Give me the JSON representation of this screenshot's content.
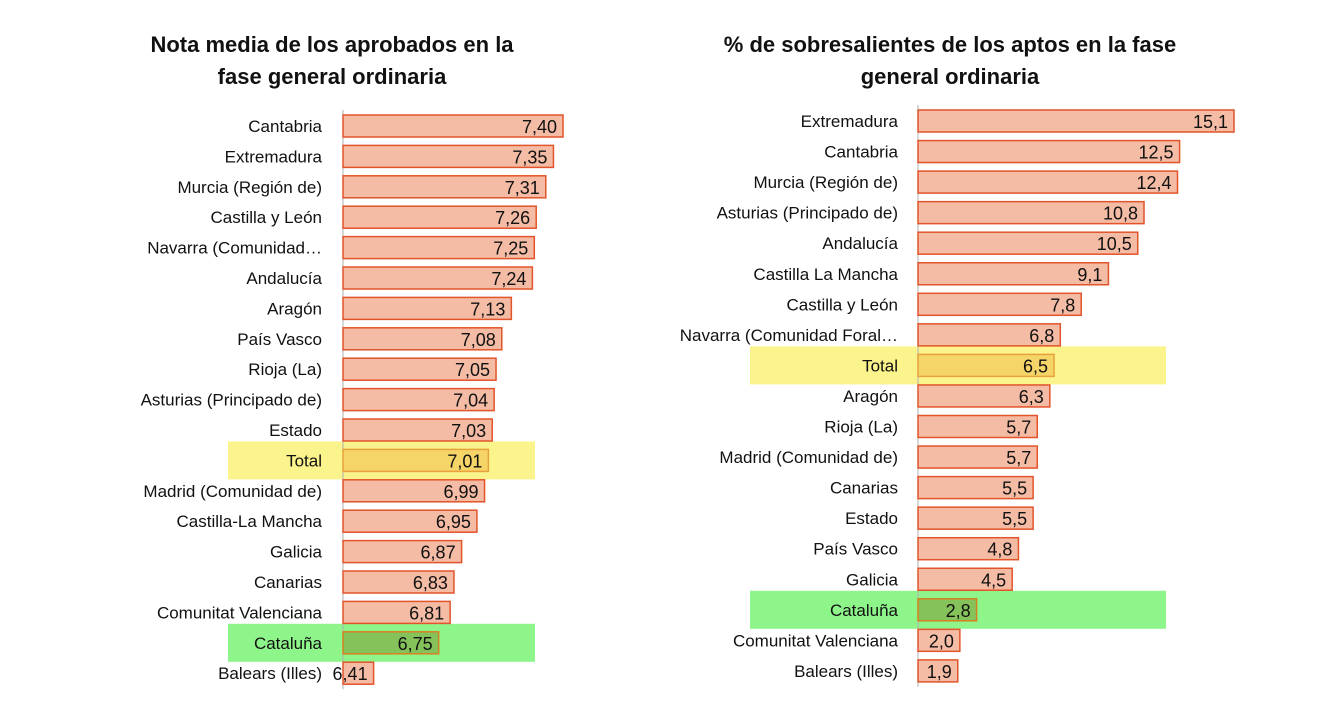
{
  "chart_data": [
    {
      "type": "bar",
      "orientation": "horizontal",
      "title": "Nota media de los aprobados en la fase general ordinaria",
      "title_lines": [
        "Nota media de los aprobados en la",
        "fase general ordinaria"
      ],
      "categories": [
        "Cantabria",
        "Extremadura",
        "Murcia (Región de)",
        "Castilla y León",
        "Navarra (Comunidad…",
        "Andalucía",
        "Aragón",
        "País Vasco",
        "Rioja (La)",
        "Asturias (Principado de)",
        "Estado",
        "Total",
        "Madrid (Comunidad de)",
        "Castilla-La Mancha",
        "Galicia",
        "Canarias",
        "Comunitat Valenciana",
        "Cataluña",
        "Balears (Illes)"
      ],
      "values": [
        7.4,
        7.35,
        7.31,
        7.26,
        7.25,
        7.24,
        7.13,
        7.08,
        7.05,
        7.04,
        7.03,
        7.01,
        6.99,
        6.95,
        6.87,
        6.83,
        6.81,
        6.75,
        6.41
      ],
      "value_labels": [
        "7,40",
        "7,35",
        "7,31",
        "7,26",
        "7,25",
        "7,24",
        "7,13",
        "7,08",
        "7,05",
        "7,04",
        "7,03",
        "7,01",
        "6,99",
        "6,95",
        "6,87",
        "6,83",
        "6,81",
        "6,75",
        "6,41"
      ],
      "xlim": [
        6.25,
        7.4
      ],
      "highlights": [
        {
          "category": "Total",
          "color": "#fbf38c",
          "bar_color": "#f5d468",
          "text_color": "#7a6a00"
        },
        {
          "category": "Cataluña",
          "color": "#8ef58a",
          "bar_color": "#86c25a",
          "text_color": "#2e6b1e"
        }
      ]
    },
    {
      "type": "bar",
      "orientation": "horizontal",
      "title": "% de sobresalientes de los aptos en la fase general ordinaria",
      "title_lines": [
        "% de sobresalientes de los aptos en la fase",
        "general ordinaria"
      ],
      "categories": [
        "Extremadura",
        "Cantabria",
        "Murcia (Región de)",
        "Asturias (Principado de)",
        "Andalucía",
        "Castilla  La Mancha",
        "Castilla y León",
        "Navarra (Comunidad Foral…",
        "Total",
        "Aragón",
        "Rioja (La)",
        "Madrid (Comunidad de)",
        "Canarias",
        "Estado",
        "País Vasco",
        "Galicia",
        "Cataluña",
        "Comunitat Valenciana",
        "Balears (Illes)"
      ],
      "values": [
        15.1,
        12.5,
        12.4,
        10.8,
        10.5,
        9.1,
        7.8,
        6.8,
        6.5,
        6.3,
        5.7,
        5.7,
        5.5,
        5.5,
        4.8,
        4.5,
        2.8,
        2.0,
        1.9
      ],
      "value_labels": [
        "15,1",
        "12,5",
        "12,4",
        "10,8",
        "10,5",
        "9,1",
        "7,8",
        "6,8",
        "6,5",
        "6,3",
        "5,7",
        "5,7",
        "5,5",
        "5,5",
        "4,8",
        "4,5",
        "2,8",
        "2,0",
        "1,9"
      ],
      "xlim": [
        0,
        15.1
      ],
      "highlights": [
        {
          "category": "Total",
          "color": "#fbf38c",
          "bar_color": "#f5d468",
          "text_color": "#7a6a00"
        },
        {
          "category": "Cataluña",
          "color": "#8ef58a",
          "bar_color": "#86c25a",
          "text_color": "#2e6b1e"
        }
      ]
    }
  ],
  "colors": {
    "bar_fill": "#f4bba5",
    "bar_stroke": "#e2542a",
    "axis": "#b0b0b0",
    "text": "#111111"
  }
}
